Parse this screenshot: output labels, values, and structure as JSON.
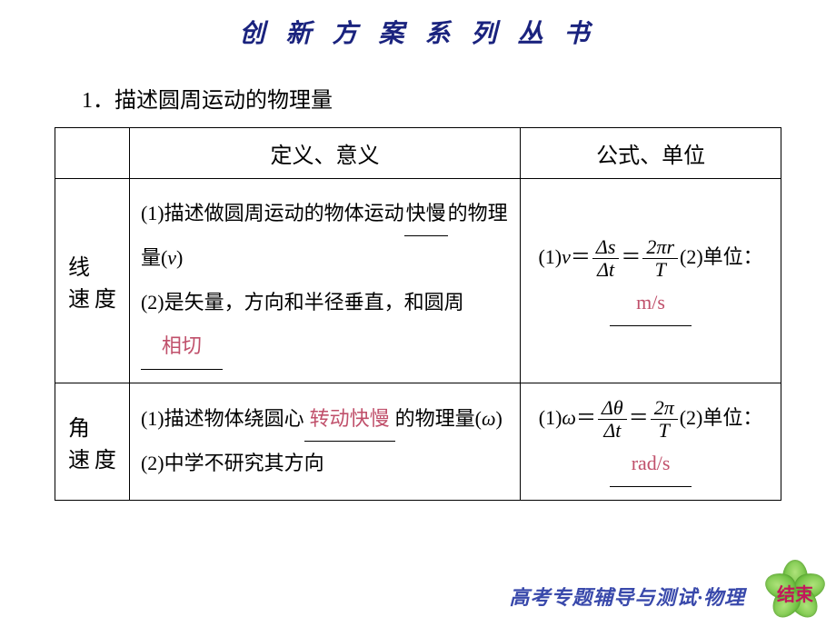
{
  "colors": {
    "title": "#1a237e",
    "answer": "#c0506b",
    "footer": "#3949ab",
    "badge_text": "#c2185b",
    "border": "#000000",
    "background": "#ffffff"
  },
  "title": "创 新 方 案 系 列 丛 书",
  "section_heading": "1．描述圆周运动的物理量",
  "table": {
    "headers": {
      "col0": "",
      "col1": "定义、意义",
      "col2": "公式、单位"
    },
    "rows": [
      {
        "label": "线　速度",
        "def_line1_prefix": "(1)描述做圆周运动的物体运动",
        "def_line1_underline": "快慢",
        "def_line1_suffix": "的物理量(",
        "def_line1_var": "v",
        "def_line1_end": ")",
        "def_line2_prefix": "(2)是矢量，方向和半径垂直，和圆周",
        "def_line2_answer": "相切",
        "formula_prefix": "(1)",
        "formula_var": "v",
        "formula_eq": "＝",
        "frac1_num": "Δs",
        "frac1_den": "Δt",
        "formula_eq2": "＝",
        "frac2_num": "2πr",
        "frac2_den": "T",
        "formula_suffix": "(2)单位：",
        "unit_answer": "m/s"
      },
      {
        "label": "角　速度",
        "def_line1_prefix": "(1)描述物体绕圆心",
        "def_line1_answer": "转动快慢",
        "def_line1_suffix": "的物理量(",
        "def_line1_var": "ω",
        "def_line1_end": ")",
        "def_line2": "(2)中学不研究其方向",
        "formula_prefix": "(1)",
        "formula_var": "ω",
        "formula_eq": "＝",
        "frac1_num": "Δθ",
        "frac1_den": "Δt",
        "formula_eq2": "＝",
        "frac2_num": "2π",
        "frac2_den": "T",
        "formula_suffix": "(2)单位：",
        "unit_answer": "rad/s"
      }
    ]
  },
  "footer": "高考专题辅导与测试·物理",
  "end_badge": "结束"
}
